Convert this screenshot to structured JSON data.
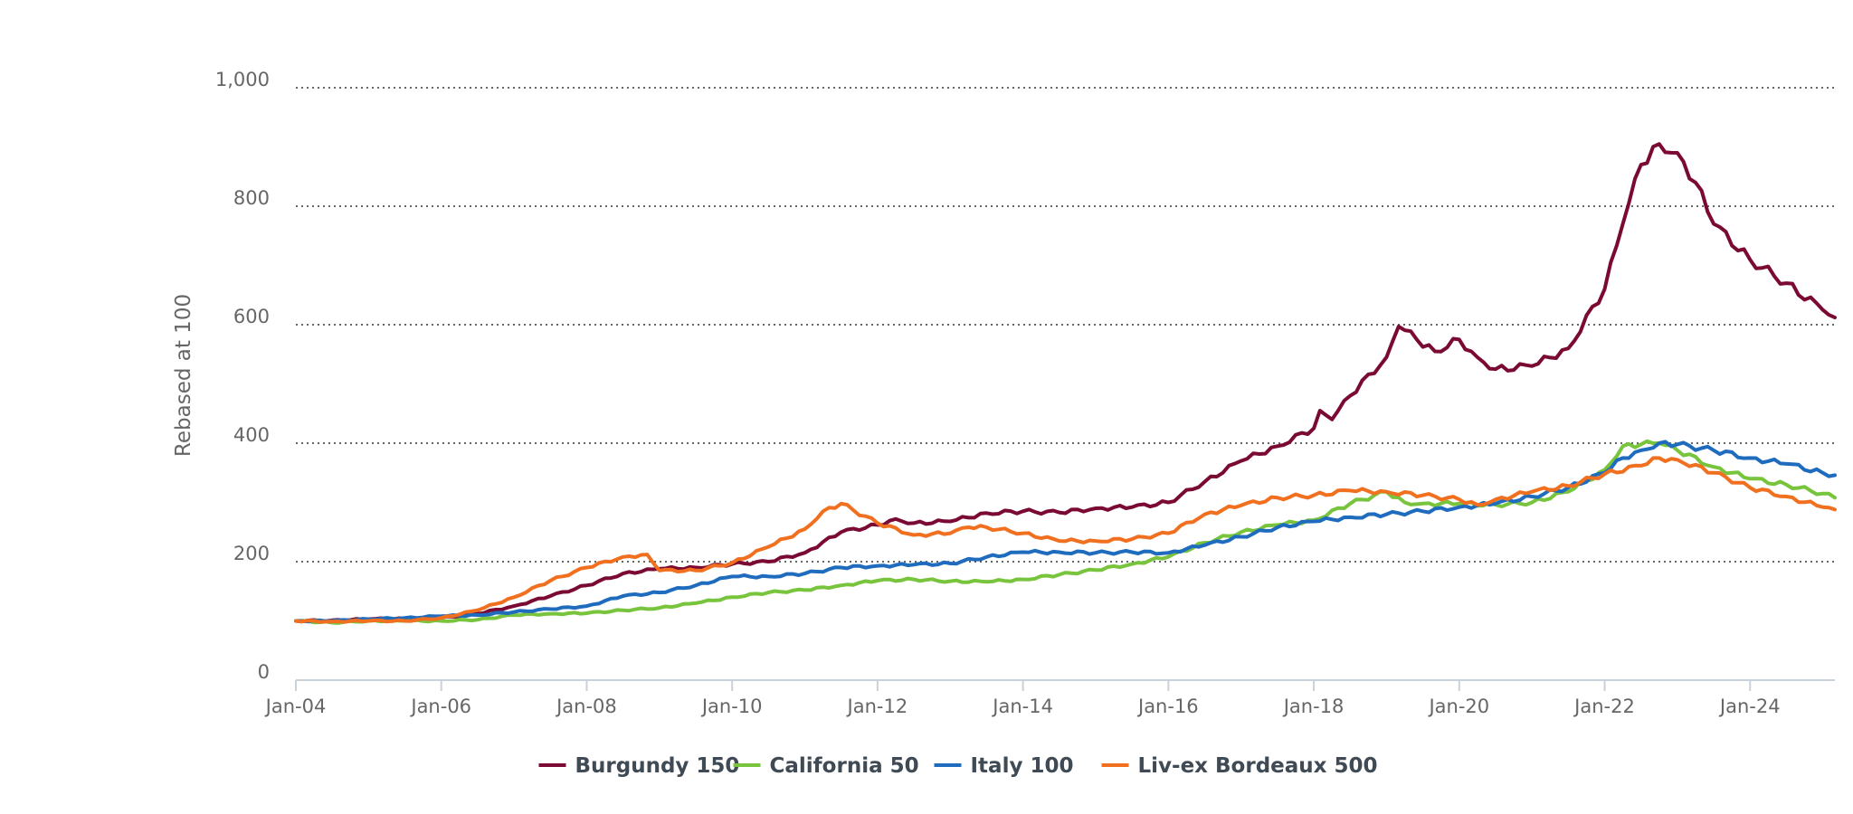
{
  "chart_data": {
    "type": "line",
    "title": "",
    "xlabel": "",
    "ylabel": "Rebased at 100",
    "ylim": [
      0,
      1000
    ],
    "y_ticks": [
      0,
      200,
      400,
      600,
      800,
      1000
    ],
    "y_tick_labels": [
      "0",
      "200",
      "400",
      "600",
      "800",
      "1,000"
    ],
    "x_range": [
      "2004-01",
      "2025-03"
    ],
    "x_ticks": [
      "2004-01",
      "2006-01",
      "2008-01",
      "2010-01",
      "2012-01",
      "2014-01",
      "2016-01",
      "2018-01",
      "2020-01",
      "2022-01",
      "2024-01"
    ],
    "x_tick_labels": [
      "Jan-04",
      "Jan-06",
      "Jan-08",
      "Jan-10",
      "Jan-12",
      "Jan-14",
      "Jan-16",
      "Jan-18",
      "Jan-20",
      "Jan-22",
      "Jan-24"
    ],
    "grid": "horizontal dotted",
    "legend_position": "bottom-center",
    "series": [
      {
        "name": "Burgundy 150",
        "color": "#7a0a34",
        "points": [
          [
            "2004-01",
            100
          ],
          [
            "2004-07",
            101
          ],
          [
            "2005-01",
            103
          ],
          [
            "2005-07",
            104
          ],
          [
            "2006-01",
            105
          ],
          [
            "2006-07",
            112
          ],
          [
            "2007-01",
            125
          ],
          [
            "2007-07",
            142
          ],
          [
            "2008-01",
            160
          ],
          [
            "2008-07",
            180
          ],
          [
            "2009-01",
            188
          ],
          [
            "2009-07",
            190
          ],
          [
            "2010-01",
            196
          ],
          [
            "2010-07",
            200
          ],
          [
            "2011-01",
            215
          ],
          [
            "2011-07",
            250
          ],
          [
            "2012-01",
            262
          ],
          [
            "2012-04",
            272
          ],
          [
            "2012-07",
            265
          ],
          [
            "2013-01",
            268
          ],
          [
            "2013-07",
            282
          ],
          [
            "2014-01",
            285
          ],
          [
            "2014-07",
            283
          ],
          [
            "2015-01",
            290
          ],
          [
            "2015-07",
            292
          ],
          [
            "2016-01",
            300
          ],
          [
            "2016-07",
            335
          ],
          [
            "2017-01",
            370
          ],
          [
            "2017-07",
            395
          ],
          [
            "2018-01",
            425
          ],
          [
            "2018-02",
            455
          ],
          [
            "2018-04",
            440
          ],
          [
            "2018-07",
            480
          ],
          [
            "2019-01",
            545
          ],
          [
            "2019-03",
            597
          ],
          [
            "2019-06",
            575
          ],
          [
            "2019-09",
            555
          ],
          [
            "2020-01",
            575
          ],
          [
            "2020-04",
            545
          ],
          [
            "2020-07",
            525
          ],
          [
            "2021-01",
            530
          ],
          [
            "2021-07",
            560
          ],
          [
            "2022-01",
            660
          ],
          [
            "2022-04",
            770
          ],
          [
            "2022-07",
            870
          ],
          [
            "2022-10",
            905
          ],
          [
            "2023-01",
            890
          ],
          [
            "2023-04",
            840
          ],
          [
            "2023-07",
            770
          ],
          [
            "2024-01",
            710
          ],
          [
            "2024-07",
            670
          ],
          [
            "2025-01",
            625
          ],
          [
            "2025-03",
            612
          ]
        ]
      },
      {
        "name": "California 50",
        "color": "#78c43c",
        "points": [
          [
            "2004-01",
            100
          ],
          [
            "2004-07",
            97
          ],
          [
            "2005-01",
            100
          ],
          [
            "2005-07",
            100
          ],
          [
            "2006-01",
            100
          ],
          [
            "2006-07",
            102
          ],
          [
            "2007-01",
            110
          ],
          [
            "2007-07",
            112
          ],
          [
            "2008-01",
            113
          ],
          [
            "2008-07",
            118
          ],
          [
            "2009-01",
            122
          ],
          [
            "2009-07",
            130
          ],
          [
            "2010-01",
            140
          ],
          [
            "2010-07",
            148
          ],
          [
            "2011-01",
            152
          ],
          [
            "2011-07",
            160
          ],
          [
            "2012-01",
            168
          ],
          [
            "2012-07",
            170
          ],
          [
            "2013-01",
            167
          ],
          [
            "2013-07",
            166
          ],
          [
            "2014-01",
            170
          ],
          [
            "2014-07",
            178
          ],
          [
            "2015-01",
            186
          ],
          [
            "2015-07",
            196
          ],
          [
            "2016-01",
            208
          ],
          [
            "2016-07",
            232
          ],
          [
            "2017-01",
            250
          ],
          [
            "2017-07",
            262
          ],
          [
            "2018-01",
            270
          ],
          [
            "2018-07",
            298
          ],
          [
            "2019-01",
            318
          ],
          [
            "2019-04",
            300
          ],
          [
            "2019-07",
            298
          ],
          [
            "2020-01",
            298
          ],
          [
            "2020-07",
            296
          ],
          [
            "2021-01",
            300
          ],
          [
            "2021-07",
            318
          ],
          [
            "2022-01",
            355
          ],
          [
            "2022-04",
            395
          ],
          [
            "2022-07",
            398
          ],
          [
            "2022-10",
            400
          ],
          [
            "2023-01",
            388
          ],
          [
            "2023-07",
            360
          ],
          [
            "2024-01",
            340
          ],
          [
            "2024-07",
            330
          ],
          [
            "2025-01",
            315
          ],
          [
            "2025-03",
            308
          ]
        ]
      },
      {
        "name": "Italy 100",
        "color": "#1f6cbf",
        "points": [
          [
            "2004-01",
            100
          ],
          [
            "2004-07",
            100
          ],
          [
            "2005-01",
            103
          ],
          [
            "2005-07",
            105
          ],
          [
            "2006-01",
            108
          ],
          [
            "2006-07",
            110
          ],
          [
            "2007-01",
            115
          ],
          [
            "2007-07",
            120
          ],
          [
            "2008-01",
            125
          ],
          [
            "2008-07",
            142
          ],
          [
            "2009-01",
            148
          ],
          [
            "2009-07",
            160
          ],
          [
            "2010-01",
            175
          ],
          [
            "2010-07",
            175
          ],
          [
            "2011-01",
            180
          ],
          [
            "2011-07",
            190
          ],
          [
            "2012-01",
            193
          ],
          [
            "2012-07",
            195
          ],
          [
            "2013-01",
            197
          ],
          [
            "2013-07",
            208
          ],
          [
            "2014-01",
            216
          ],
          [
            "2014-07",
            216
          ],
          [
            "2015-01",
            215
          ],
          [
            "2015-07",
            216
          ],
          [
            "2016-01",
            215
          ],
          [
            "2016-07",
            228
          ],
          [
            "2017-01",
            242
          ],
          [
            "2017-07",
            258
          ],
          [
            "2018-01",
            268
          ],
          [
            "2018-07",
            275
          ],
          [
            "2019-01",
            280
          ],
          [
            "2019-07",
            285
          ],
          [
            "2020-01",
            292
          ],
          [
            "2020-07",
            298
          ],
          [
            "2021-01",
            310
          ],
          [
            "2021-07",
            325
          ],
          [
            "2022-01",
            350
          ],
          [
            "2022-04",
            375
          ],
          [
            "2022-07",
            388
          ],
          [
            "2022-10",
            400
          ],
          [
            "2023-01",
            398
          ],
          [
            "2023-07",
            388
          ],
          [
            "2024-01",
            375
          ],
          [
            "2024-07",
            365
          ],
          [
            "2025-01",
            350
          ],
          [
            "2025-03",
            346
          ]
        ]
      },
      {
        "name": "Liv-ex Bordeaux 500",
        "color": "#f07020",
        "points": [
          [
            "2004-01",
            100
          ],
          [
            "2004-07",
            99
          ],
          [
            "2005-01",
            100
          ],
          [
            "2005-07",
            100
          ],
          [
            "2006-01",
            105
          ],
          [
            "2006-07",
            118
          ],
          [
            "2007-01",
            140
          ],
          [
            "2007-07",
            168
          ],
          [
            "2008-01",
            190
          ],
          [
            "2008-07",
            208
          ],
          [
            "2008-11",
            212
          ],
          [
            "2009-01",
            185
          ],
          [
            "2009-07",
            185
          ],
          [
            "2010-01",
            198
          ],
          [
            "2010-07",
            225
          ],
          [
            "2011-01",
            255
          ],
          [
            "2011-04",
            285
          ],
          [
            "2011-07",
            298
          ],
          [
            "2012-01",
            265
          ],
          [
            "2012-07",
            245
          ],
          [
            "2013-01",
            248
          ],
          [
            "2013-04",
            258
          ],
          [
            "2013-07",
            258
          ],
          [
            "2014-01",
            248
          ],
          [
            "2014-07",
            235
          ],
          [
            "2015-01",
            235
          ],
          [
            "2015-07",
            238
          ],
          [
            "2016-01",
            248
          ],
          [
            "2016-07",
            280
          ],
          [
            "2017-01",
            295
          ],
          [
            "2017-07",
            308
          ],
          [
            "2018-01",
            312
          ],
          [
            "2018-07",
            320
          ],
          [
            "2019-01",
            318
          ],
          [
            "2019-07",
            312
          ],
          [
            "2020-01",
            305
          ],
          [
            "2020-04",
            296
          ],
          [
            "2020-07",
            305
          ],
          [
            "2021-01",
            318
          ],
          [
            "2021-07",
            328
          ],
          [
            "2022-01",
            348
          ],
          [
            "2022-07",
            362
          ],
          [
            "2022-10",
            375
          ],
          [
            "2023-01",
            372
          ],
          [
            "2023-07",
            350
          ],
          [
            "2024-01",
            325
          ],
          [
            "2024-07",
            310
          ],
          [
            "2025-01",
            292
          ],
          [
            "2025-03",
            288
          ]
        ]
      }
    ]
  }
}
